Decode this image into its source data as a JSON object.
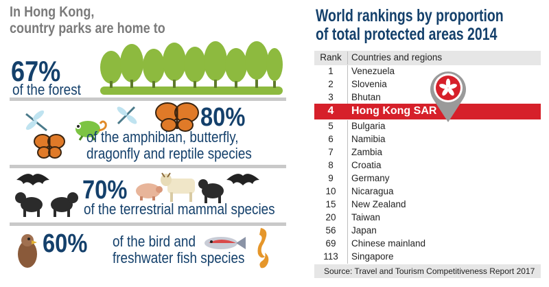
{
  "left": {
    "heading_line1": "In Hong Kong,",
    "heading_line2": "country parks are home to",
    "stats": [
      {
        "percent": "67%",
        "line1": "of the forest",
        "line2": "",
        "icons": [
          "tree-icon"
        ]
      },
      {
        "percent": "80%",
        "line1": "of the amphibian, butterfly,",
        "line2": "dragonfly and reptile species",
        "icons": [
          "dragonfly-icon",
          "butterfly-icon",
          "chameleon-icon"
        ]
      },
      {
        "percent": "70%",
        "line1": "of the terrestrial mammal species",
        "line2": "",
        "icons": [
          "bat-icon",
          "monkey-icon",
          "pig-icon",
          "cow-icon"
        ]
      },
      {
        "percent": "60%",
        "line1": "of the bird and",
        "line2": "freshwater fish species",
        "icons": [
          "eagle-icon",
          "fish-icon",
          "seahorse-icon"
        ]
      }
    ]
  },
  "right": {
    "title_line1": "World rankings by proportion",
    "title_line2": "of total protected areas 2014",
    "columns": {
      "rank": "Rank",
      "country": "Countries and regions"
    },
    "rows": [
      {
        "rank": "1",
        "country": "Venezuela"
      },
      {
        "rank": "2",
        "country": "Slovenia"
      },
      {
        "rank": "3",
        "country": "Bhutan"
      },
      {
        "rank": "4",
        "country": "Hong Kong SAR",
        "highlight": true
      },
      {
        "rank": "5",
        "country": "Bulgaria"
      },
      {
        "rank": "6",
        "country": "Namibia"
      },
      {
        "rank": "7",
        "country": "Zambia"
      },
      {
        "rank": "8",
        "country": "Croatia"
      },
      {
        "rank": "9",
        "country": "Germany"
      },
      {
        "rank": "10",
        "country": "Nicaragua"
      },
      {
        "rank": "15",
        "country": "New Zealand"
      },
      {
        "rank": "20",
        "country": "Taiwan"
      },
      {
        "rank": "56",
        "country": "Japan"
      },
      {
        "rank": "69",
        "country": "Chinese mainland"
      },
      {
        "rank": "113",
        "country": "Singapore"
      }
    ],
    "source": "Source: Travel and Tourism Competitiveness Report 2017"
  },
  "colors": {
    "navy": "#14406b",
    "grey_heading": "#7a7a7a",
    "highlight_red": "#d6202a",
    "divider": "#c9c9c9",
    "tree_green": "#8dba3f"
  }
}
